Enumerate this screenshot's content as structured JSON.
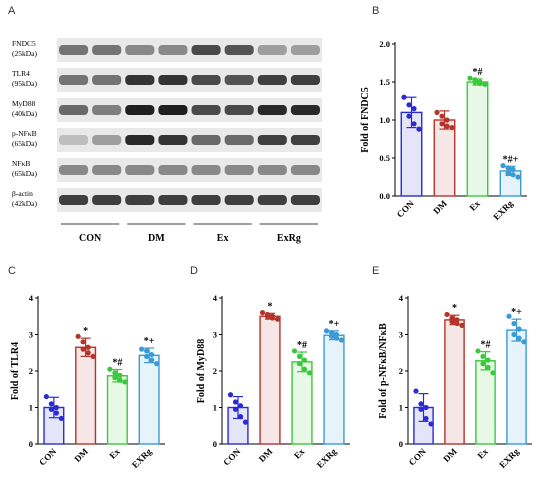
{
  "colors": {
    "CON": "#2a2ad6",
    "DM": "#b5342a",
    "Ex": "#3cc83c",
    "EXRg": "#3a9ad6"
  },
  "blot": {
    "letter": "A",
    "rows": [
      {
        "name": "FNDC5",
        "size": "(25kDa)",
        "intensity": [
          0.55,
          0.55,
          0.45,
          0.45,
          0.75,
          0.7,
          0.35,
          0.35
        ]
      },
      {
        "name": "TLR4",
        "size": "(95kDa)",
        "intensity": [
          0.55,
          0.55,
          0.85,
          0.85,
          0.75,
          0.7,
          0.8,
          0.8
        ]
      },
      {
        "name": "MyD88",
        "size": "(40kDa)",
        "intensity": [
          0.6,
          0.5,
          0.95,
          0.95,
          0.75,
          0.75,
          0.9,
          0.9
        ]
      },
      {
        "name": "p-NFκB",
        "size": "(65kDa)",
        "intensity": [
          0.2,
          0.35,
          0.9,
          0.85,
          0.6,
          0.6,
          0.8,
          0.8
        ]
      },
      {
        "name": "NFκB",
        "size": "(65kDa)",
        "intensity": [
          0.45,
          0.45,
          0.45,
          0.45,
          0.45,
          0.45,
          0.45,
          0.45
        ]
      },
      {
        "name": "β-actin",
        "size": "(42kDa)",
        "intensity": [
          0.8,
          0.8,
          0.8,
          0.8,
          0.8,
          0.8,
          0.8,
          0.8
        ]
      }
    ],
    "groups": [
      "CON",
      "DM",
      "Ex",
      "ExRg"
    ]
  },
  "chart_data": [
    {
      "type": "bar",
      "panel": "B",
      "categories": [
        "CON",
        "DM",
        "Ex",
        "EXRg"
      ],
      "values": [
        1.1,
        1.0,
        1.5,
        0.33
      ],
      "errors": [
        0.2,
        0.12,
        0.04,
        0.06
      ],
      "points": [
        [
          1.3,
          1.2,
          1.15,
          1.05,
          0.95,
          0.88
        ],
        [
          1.1,
          1.05,
          1.0,
          0.95,
          0.92,
          0.9
        ],
        [
          1.55,
          1.53,
          1.5,
          1.5,
          1.48,
          1.47
        ],
        [
          0.4,
          0.37,
          0.35,
          0.3,
          0.28,
          0.25
        ]
      ],
      "sig": [
        "",
        "",
        "*#",
        "*#+"
      ],
      "ylabel": "Fold of FNDC5",
      "ylim": [
        0,
        2.0
      ],
      "yticks": [
        "0.0",
        "0.5",
        "1.0",
        "1.5",
        "2.0"
      ]
    },
    {
      "type": "bar",
      "panel": "C",
      "categories": [
        "CON",
        "DM",
        "Ex",
        "EXRg"
      ],
      "values": [
        1.0,
        2.65,
        1.87,
        2.43
      ],
      "errors": [
        0.28,
        0.25,
        0.17,
        0.2
      ],
      "points": [
        [
          1.3,
          1.1,
          1.0,
          0.95,
          0.85,
          0.7
        ],
        [
          2.95,
          2.8,
          2.65,
          2.6,
          2.5,
          2.4
        ],
        [
          2.05,
          1.95,
          1.88,
          1.82,
          1.75,
          1.7
        ],
        [
          2.6,
          2.55,
          2.45,
          2.4,
          2.3,
          2.2
        ]
      ],
      "sig": [
        "",
        "*",
        "*#",
        "*+"
      ],
      "ylabel": "Fold of TLR4",
      "ylim": [
        0,
        4
      ],
      "yticks": [
        "0",
        "1",
        "2",
        "3",
        "4"
      ]
    },
    {
      "type": "bar",
      "panel": "D",
      "categories": [
        "CON",
        "DM",
        "Ex",
        "EXRg"
      ],
      "values": [
        1.0,
        3.5,
        2.25,
        2.98
      ],
      "errors": [
        0.3,
        0.08,
        0.27,
        0.12
      ],
      "points": [
        [
          1.35,
          1.15,
          1.05,
          0.95,
          0.75,
          0.6
        ],
        [
          3.6,
          3.55,
          3.5,
          3.5,
          3.45,
          3.42
        ],
        [
          2.55,
          2.4,
          2.3,
          2.2,
          2.05,
          1.95
        ],
        [
          3.1,
          3.05,
          3.0,
          2.95,
          2.9,
          2.85
        ]
      ],
      "sig": [
        "",
        "*",
        "*#",
        "*+"
      ],
      "ylabel": "Fold of MyD88",
      "ylim": [
        0,
        4
      ],
      "yticks": [
        "0",
        "1",
        "2",
        "3",
        "4"
      ]
    },
    {
      "type": "bar",
      "panel": "E",
      "categories": [
        "CON",
        "DM",
        "Ex",
        "EXRg"
      ],
      "values": [
        1.0,
        3.4,
        2.28,
        3.12
      ],
      "errors": [
        0.38,
        0.13,
        0.25,
        0.3
      ],
      "points": [
        [
          1.45,
          1.1,
          1.0,
          0.95,
          0.7,
          0.55
        ],
        [
          3.55,
          3.45,
          3.4,
          3.35,
          3.3,
          3.25
        ],
        [
          2.55,
          2.4,
          2.3,
          2.2,
          2.1,
          1.95
        ],
        [
          3.5,
          3.3,
          3.15,
          3.0,
          2.9,
          2.8
        ]
      ],
      "sig": [
        "",
        "*",
        "*#",
        "*+"
      ],
      "ylabel": "Fold of p-NFκB/NFκB",
      "ylim": [
        0,
        4
      ],
      "yticks": [
        "0",
        "1",
        "2",
        "3",
        "4"
      ]
    }
  ]
}
